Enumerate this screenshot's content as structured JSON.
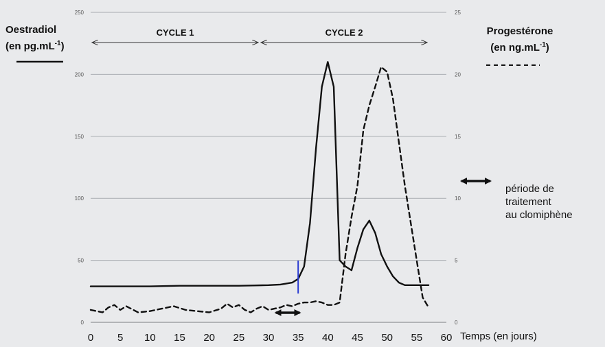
{
  "chart_data": {
    "type": "line",
    "xlabel": "Temps (en jours)",
    "xlim": [
      0,
      60
    ],
    "x_ticks": [
      "0",
      "5",
      "10",
      "15",
      "20",
      "25",
      "30",
      "35",
      "40",
      "45",
      "50",
      "55",
      "60"
    ],
    "y_left": {
      "label_line1": "Oestradiol",
      "label_line2": "(en pg.mL",
      "label_sup": "-1",
      "label_close": ")",
      "ylim": [
        0,
        250
      ],
      "ticks": [
        "0",
        "50",
        "100",
        "150",
        "200",
        "250"
      ]
    },
    "y_right": {
      "label_line1": "Progestérone",
      "label_line2": "(en ng.mL",
      "label_sup": "-1",
      "label_close": ")",
      "ylim": [
        0,
        25
      ],
      "ticks": [
        "0",
        "5",
        "10",
        "15",
        "20",
        "25"
      ]
    },
    "grid": true,
    "cycles": [
      {
        "label": "CYCLE 1",
        "x_start": 0,
        "x_end": 28.5
      },
      {
        "label": "CYCLE 2",
        "x_start": 28.5,
        "x_end": 57
      }
    ],
    "series": [
      {
        "style": "solid",
        "axis": "left",
        "color": "#111111",
        "x": [
          0,
          5,
          10,
          15,
          20,
          25,
          30,
          32,
          34,
          35,
          36,
          37,
          38,
          39,
          40,
          41,
          42,
          43,
          44,
          45,
          46,
          47,
          48,
          49,
          50,
          51,
          52,
          53,
          54,
          55,
          56,
          57
        ],
        "y": [
          29,
          29,
          29,
          29.5,
          29.5,
          29.5,
          30,
          30.5,
          32,
          35,
          45,
          80,
          140,
          190,
          210,
          190,
          50,
          45,
          42,
          60,
          75,
          82,
          72,
          55,
          45,
          37,
          32,
          30,
          30,
          30,
          30,
          30
        ]
      },
      {
        "style": "dashed",
        "axis": "right",
        "color": "#111111",
        "x": [
          0,
          2,
          3,
          4,
          5,
          6,
          8,
          10,
          12,
          14,
          16,
          18,
          20,
          22,
          23,
          24,
          25,
          26,
          27,
          28,
          29,
          30,
          31,
          32,
          33,
          34,
          35,
          36,
          37,
          38,
          39,
          40,
          41,
          42,
          43,
          44,
          45,
          46,
          47,
          48,
          49,
          50,
          51,
          52,
          53,
          54,
          55,
          56,
          57
        ],
        "y": [
          1.0,
          0.8,
          1.2,
          1.4,
          1.0,
          1.3,
          0.8,
          0.9,
          1.1,
          1.3,
          1.0,
          0.9,
          0.8,
          1.1,
          1.5,
          1.2,
          1.4,
          1.0,
          0.8,
          1.1,
          1.3,
          1.0,
          1.1,
          1.2,
          1.4,
          1.3,
          1.5,
          1.6,
          1.6,
          1.7,
          1.6,
          1.4,
          1.4,
          1.6,
          5.5,
          8.5,
          11,
          15.5,
          17.5,
          19,
          20.6,
          20.2,
          18,
          14.5,
          11,
          8,
          5,
          2,
          1.2
        ]
      }
    ],
    "legend": {
      "treatment_line1": "période de",
      "treatment_line2": "traitement",
      "treatment_line3": "au clomiphène"
    },
    "annotations": {
      "treatment_period_x": [
        31,
        35.5
      ],
      "marker_day": 35
    }
  }
}
